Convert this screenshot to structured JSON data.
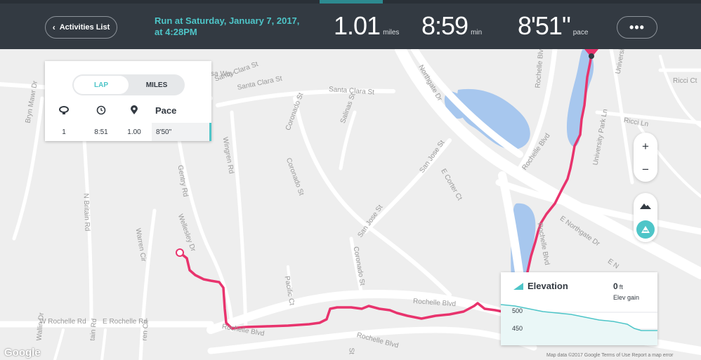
{
  "header": {
    "back_label": "Activities List",
    "title_line1": "Run at Saturday, January 7, 2017,",
    "title_line2": "at 4:28PM",
    "distance_value": "1.01",
    "distance_unit": "miles",
    "time_value": "8:59",
    "time_unit": "min",
    "pace_value": "8'51\"",
    "pace_unit": "pace",
    "more_label": "•••"
  },
  "laps_panel": {
    "tabs": [
      {
        "label": "LAP",
        "selected": true
      },
      {
        "label": "MILES",
        "selected": false
      }
    ],
    "columns": {
      "lap_icon": "stopwatch-icon",
      "time_icon": "clock-icon",
      "distance_icon": "pin-icon",
      "pace_label": "Pace"
    },
    "rows": [
      {
        "lap": "1",
        "time": "8:51",
        "distance": "1.00",
        "pace": "8'50\""
      }
    ]
  },
  "map": {
    "streets": [
      "Santa Clara St",
      "Santa Clara St",
      "Santa Clara St",
      "Bryn Mawr Dr",
      "Wingren Rd",
      "Coronado St",
      "Coronado St",
      "Salinas St",
      "San Jose St",
      "San Jose St",
      "E Corter Ct",
      "Northgate Dr",
      "Gentry Rd",
      "Wellesley Dr",
      "N Britain Rd",
      "Warren Cir",
      "Pacific Ct",
      "Coronado St",
      "Rochelle Blvd",
      "Rochelle Blvd",
      "Rochelle Blvd",
      "Rochelle Blvd",
      "W Rochelle Rd",
      "E Rochelle Rd",
      "Rochelle Blvd",
      "Rochelle Blvd",
      "E Northgate Dr",
      "E N",
      "University Park Ln",
      "Ricci Ln",
      "Ricci Ct",
      "University Par",
      "sa Way",
      "Wallin Dr",
      "tain Rd",
      "ren Cir",
      "St"
    ],
    "route_color": "#e8336d",
    "water_color": "#a7c7ee",
    "zoom_in_label": "+",
    "zoom_out_label": "−",
    "terrain_icon": "mountain-icon",
    "satellite_icon": "satellite-icon",
    "google_label": "Google",
    "attribution": "Map data ©2017 Google    Terms of Use    Report a map error"
  },
  "elevation": {
    "title": "Elevation",
    "icon": "elevation-icon",
    "gain_value": "0",
    "gain_unit": "ft",
    "gain_label": "Elev gain",
    "y_ticks": [
      "500",
      "450"
    ],
    "line_color": "#4ec5c8"
  },
  "colors": {
    "header_bg": "#333a42",
    "accent": "#4ec5c8"
  }
}
